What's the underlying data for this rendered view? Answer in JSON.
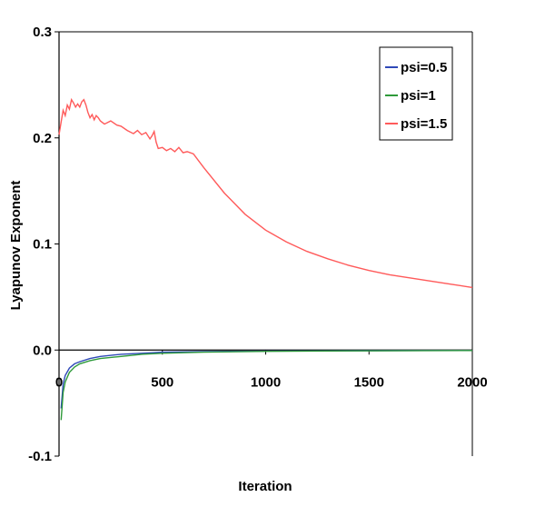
{
  "chart_data": {
    "type": "line",
    "title": "",
    "xlabel": "Iteration",
    "ylabel": "Lyapunov Exponent",
    "xlim": [
      0,
      2000
    ],
    "ylim": [
      -0.1,
      0.3
    ],
    "x_ticks": [
      "0",
      "500",
      "1000",
      "1500",
      "2000"
    ],
    "y_ticks": [
      "0.3",
      "0.2",
      "0.1",
      "0.0",
      "-0.1"
    ],
    "grid": false,
    "legend_position": "top-right",
    "series": [
      {
        "name": "psi=0.5",
        "color": "#2f49b8",
        "x": [
          10,
          20,
          30,
          50,
          75,
          100,
          150,
          200,
          300,
          400,
          500,
          700,
          1000,
          1400,
          2000
        ],
        "y": [
          -0.055,
          -0.032,
          -0.024,
          -0.017,
          -0.013,
          -0.011,
          -0.008,
          -0.006,
          -0.004,
          -0.003,
          -0.002,
          -0.0015,
          -0.001,
          -0.0006,
          -0.0004
        ]
      },
      {
        "name": "psi=1",
        "color": "#2e9a3a",
        "x": [
          10,
          20,
          30,
          50,
          75,
          100,
          150,
          200,
          300,
          400,
          500,
          700,
          1000,
          1400,
          2000
        ],
        "y": [
          -0.066,
          -0.04,
          -0.03,
          -0.021,
          -0.016,
          -0.013,
          -0.01,
          -0.008,
          -0.006,
          -0.004,
          -0.003,
          -0.002,
          -0.0012,
          -0.0008,
          -0.0005
        ]
      },
      {
        "name": "psi=1.5",
        "color": "#ff5a5a",
        "x": [
          0,
          10,
          20,
          30,
          40,
          50,
          60,
          70,
          80,
          90,
          100,
          110,
          120,
          130,
          140,
          150,
          160,
          170,
          180,
          190,
          200,
          220,
          250,
          280,
          300,
          330,
          360,
          380,
          400,
          420,
          440,
          450,
          460,
          470,
          480,
          500,
          520,
          540,
          560,
          580,
          600,
          620,
          650,
          700,
          800,
          900,
          1000,
          1100,
          1200,
          1300,
          1400,
          1500,
          1600,
          1700,
          1800,
          1900,
          2000
        ],
        "y": [
          0.203,
          0.215,
          0.226,
          0.221,
          0.231,
          0.227,
          0.236,
          0.233,
          0.229,
          0.232,
          0.229,
          0.234,
          0.236,
          0.231,
          0.224,
          0.219,
          0.222,
          0.217,
          0.221,
          0.219,
          0.216,
          0.213,
          0.216,
          0.212,
          0.211,
          0.207,
          0.204,
          0.207,
          0.203,
          0.205,
          0.199,
          0.202,
          0.206,
          0.196,
          0.19,
          0.191,
          0.188,
          0.19,
          0.187,
          0.191,
          0.186,
          0.187,
          0.185,
          0.172,
          0.148,
          0.128,
          0.113,
          0.102,
          0.093,
          0.086,
          0.08,
          0.075,
          0.071,
          0.068,
          0.065,
          0.062,
          0.059
        ]
      }
    ]
  }
}
